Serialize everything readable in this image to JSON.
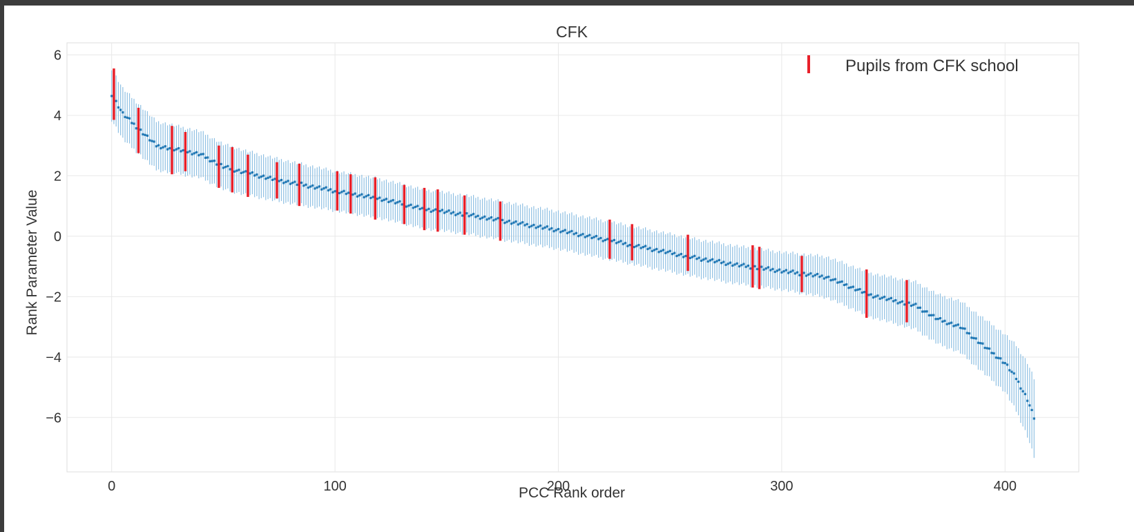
{
  "chart_data": {
    "type": "scatter",
    "title": "CFK",
    "xlabel": "PCC Rank order",
    "ylabel": "Rank Parameter Value",
    "xlim": [
      -20,
      433
    ],
    "ylim": [
      -7.8,
      6.4
    ],
    "xticks": [
      0,
      100,
      200,
      300,
      400
    ],
    "yticks": [
      -6,
      -4,
      -2,
      0,
      2,
      4,
      6
    ],
    "ytick_labels": [
      "−6",
      "−4",
      "−2",
      "0",
      "2",
      "4",
      "6"
    ],
    "grid": true,
    "legend_position": "top-right",
    "n_points": 414,
    "series": [
      {
        "name": "",
        "kind": "points_with_errorbars",
        "color": "#1f77b4",
        "errorbar_color": "#8fc0e3",
        "value_curve": [
          [
            0,
            4.7
          ],
          [
            5,
            4.05
          ],
          [
            10,
            3.7
          ],
          [
            20,
            3.0
          ],
          [
            30,
            2.85
          ],
          [
            40,
            2.7
          ],
          [
            50,
            2.3
          ],
          [
            60,
            2.1
          ],
          [
            75,
            1.85
          ],
          [
            100,
            1.5
          ],
          [
            120,
            1.25
          ],
          [
            140,
            0.9
          ],
          [
            160,
            0.7
          ],
          [
            180,
            0.45
          ],
          [
            200,
            0.2
          ],
          [
            220,
            -0.1
          ],
          [
            240,
            -0.4
          ],
          [
            260,
            -0.7
          ],
          [
            280,
            -0.95
          ],
          [
            300,
            -1.15
          ],
          [
            320,
            -1.35
          ],
          [
            340,
            -1.95
          ],
          [
            360,
            -2.3
          ],
          [
            370,
            -2.75
          ],
          [
            380,
            -3.0
          ],
          [
            390,
            -3.6
          ],
          [
            400,
            -4.2
          ],
          [
            405,
            -4.7
          ],
          [
            410,
            -5.4
          ],
          [
            413,
            -6.0
          ]
        ],
        "error_halfwidth_curve": [
          [
            0,
            0.85
          ],
          [
            20,
            0.8
          ],
          [
            100,
            0.65
          ],
          [
            200,
            0.62
          ],
          [
            300,
            0.62
          ],
          [
            350,
            0.75
          ],
          [
            380,
            0.85
          ],
          [
            400,
            0.95
          ],
          [
            413,
            1.3
          ]
        ]
      },
      {
        "name": "Pupils from CFK school",
        "kind": "highlighted_errorbars",
        "color": "#e8202a",
        "x": [
          1,
          12,
          27,
          33,
          48,
          54,
          61,
          74,
          84,
          101,
          107,
          118,
          131,
          140,
          146,
          158,
          174,
          223,
          233,
          258,
          287,
          290,
          309,
          338,
          356
        ],
        "y": [
          4.7,
          3.5,
          2.85,
          2.8,
          2.3,
          2.2,
          2.0,
          1.85,
          1.7,
          1.5,
          1.4,
          1.25,
          1.05,
          0.9,
          0.85,
          0.7,
          0.5,
          -0.1,
          -0.2,
          -0.55,
          -1.0,
          -1.05,
          -1.25,
          -1.9,
          -2.15
        ],
        "err": [
          0.85,
          0.75,
          0.8,
          0.65,
          0.7,
          0.75,
          0.7,
          0.6,
          0.7,
          0.65,
          0.65,
          0.7,
          0.65,
          0.7,
          0.7,
          0.65,
          0.65,
          0.65,
          0.6,
          0.6,
          0.7,
          0.7,
          0.6,
          0.8,
          0.7
        ]
      }
    ]
  }
}
